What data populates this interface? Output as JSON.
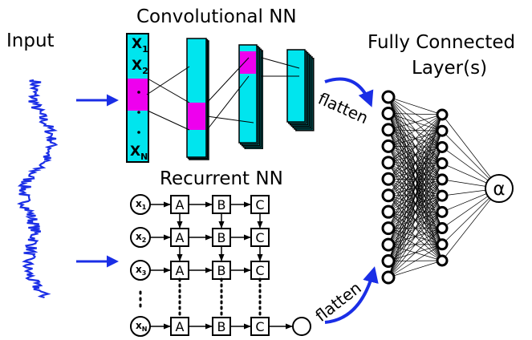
{
  "labels": {
    "input": "Input",
    "conv_title": "Convolutional NN",
    "fc_title_line1": "Fully Connected",
    "fc_title_line2": "Layer(s)",
    "rnn_title": "Recurrent NN",
    "flatten_top": "flatten",
    "flatten_bottom": "flatten",
    "output": "α"
  },
  "conv_column": {
    "first": "X",
    "first_sub": "1",
    "second": "X",
    "second_sub": "2",
    "last": "X",
    "last_sub": "N"
  },
  "rnn": {
    "input_nodes": [
      {
        "main": "x",
        "sub": "1"
      },
      {
        "main": "x",
        "sub": "2"
      },
      {
        "main": "x",
        "sub": "3"
      },
      {
        "main": "x",
        "sub": "N"
      }
    ],
    "cells": [
      "A",
      "B",
      "C"
    ]
  },
  "colors": {
    "signal": "#1a2ee6",
    "arrow": "#1a2ee6",
    "conv_fill": "#00e5ee",
    "highlight": "#ee00ee",
    "stroke": "#000000"
  },
  "network": {
    "layer1_nodes": 12,
    "layer2_nodes": 10,
    "output_nodes": 1
  }
}
